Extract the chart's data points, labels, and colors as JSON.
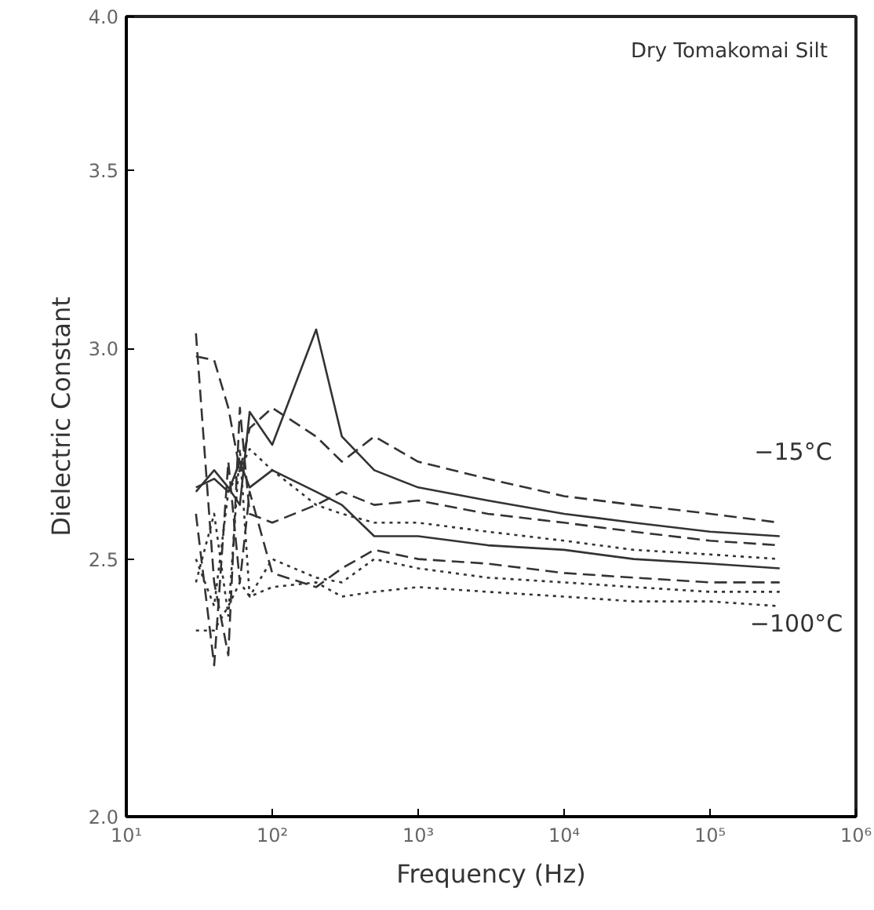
{
  "chart_data": {
    "type": "line",
    "title": "Dry Tomakomai Silt",
    "xlabel": "Frequency (Hz)",
    "ylabel": "Dielectric Constant",
    "log": "xy",
    "grid": false,
    "marker": "none",
    "xlim": [
      10,
      1000000
    ],
    "ylim": [
      2.0,
      4.0
    ],
    "xticks": [
      {
        "value": 10,
        "label": "10¹"
      },
      {
        "value": 100,
        "label": "10²"
      },
      {
        "value": 1000,
        "label": "10³"
      },
      {
        "value": 10000,
        "label": "10⁴"
      },
      {
        "value": 100000,
        "label": "10⁵"
      },
      {
        "value": 1000000,
        "label": "10⁶"
      }
    ],
    "yticks": [
      {
        "value": 2.0,
        "label": "2.0"
      },
      {
        "value": 2.5,
        "label": "2.5"
      },
      {
        "value": 3.0,
        "label": "3.0"
      },
      {
        "value": 3.5,
        "label": "3.5"
      },
      {
        "value": 4.0,
        "label": "4.0"
      }
    ],
    "x": [
      30,
      40,
      50,
      60,
      70,
      100,
      200,
      300,
      500,
      1000,
      3000,
      10000,
      30000,
      100000,
      300000
    ],
    "series": [
      {
        "color": "#333333",
        "line_style": "dashed",
        "values": [
          2.98,
          2.97,
          2.85,
          2.7,
          2.8,
          2.85,
          2.78,
          2.72,
          2.78,
          2.72,
          2.68,
          2.64,
          2.62,
          2.6,
          2.58
        ]
      },
      {
        "color": "#333333",
        "line_style": "solid",
        "values": [
          2.65,
          2.7,
          2.66,
          2.62,
          2.84,
          2.76,
          3.05,
          2.78,
          2.7,
          2.66,
          2.63,
          2.6,
          2.58,
          2.56,
          2.55
        ]
      },
      {
        "color": "#333333",
        "line_style": "dashed",
        "values": [
          3.04,
          2.45,
          2.3,
          2.85,
          2.6,
          2.58,
          2.62,
          2.65,
          2.62,
          2.63,
          2.6,
          2.58,
          2.56,
          2.54,
          2.53
        ]
      },
      {
        "color": "#333333",
        "line_style": "dotted",
        "values": [
          2.5,
          2.4,
          2.65,
          2.7,
          2.75,
          2.7,
          2.62,
          2.6,
          2.58,
          2.58,
          2.56,
          2.54,
          2.52,
          2.51,
          2.5
        ]
      },
      {
        "color": "#333333",
        "line_style": "solid",
        "values": [
          2.66,
          2.68,
          2.65,
          2.72,
          2.66,
          2.7,
          2.65,
          2.62,
          2.55,
          2.55,
          2.53,
          2.52,
          2.5,
          2.49,
          2.48
        ]
      },
      {
        "color": "#333333",
        "line_style": "dashed",
        "values": [
          2.6,
          2.28,
          2.72,
          2.45,
          2.65,
          2.47,
          2.44,
          2.48,
          2.52,
          2.5,
          2.49,
          2.47,
          2.46,
          2.45,
          2.45
        ]
      },
      {
        "color": "#333333",
        "line_style": "dotted",
        "values": [
          2.45,
          2.6,
          2.38,
          2.75,
          2.42,
          2.5,
          2.46,
          2.45,
          2.5,
          2.48,
          2.46,
          2.45,
          2.44,
          2.43,
          2.43
        ]
      },
      {
        "color": "#333333",
        "line_style": "dotted",
        "values": [
          2.35,
          2.35,
          2.4,
          2.45,
          2.42,
          2.44,
          2.45,
          2.42,
          2.43,
          2.44,
          2.43,
          2.42,
          2.41,
          2.41,
          2.4
        ]
      }
    ],
    "annotations": [
      "−15°C",
      "−100°C"
    ]
  }
}
